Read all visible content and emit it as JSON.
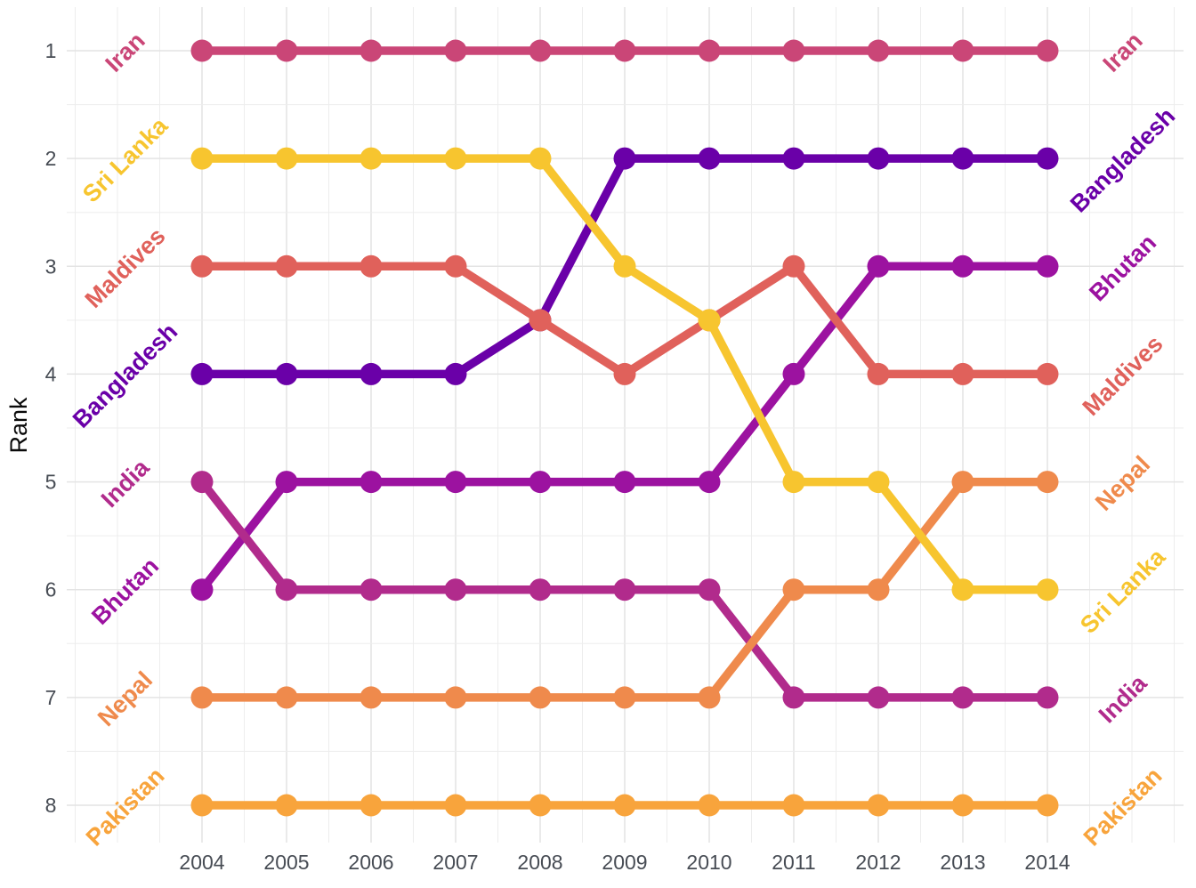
{
  "chart_data": {
    "type": "line",
    "subtype": "bump-rank-chart",
    "title": "",
    "xlabel": "",
    "ylabel": "Rank",
    "grid": true,
    "legend_position": "line-end-labels",
    "x": [
      2004,
      2005,
      2006,
      2007,
      2008,
      2009,
      2010,
      2011,
      2012,
      2013,
      2014
    ],
    "x_tick_labels": [
      "2004",
      "2005",
      "2006",
      "2007",
      "2008",
      "2009",
      "2010",
      "2011",
      "2012",
      "2013",
      "2014"
    ],
    "y_ticks": [
      1,
      2,
      3,
      4,
      5,
      6,
      7,
      8
    ],
    "y_tick_labels": [
      "1",
      "2",
      "3",
      "4",
      "5",
      "6",
      "7",
      "8"
    ],
    "y_axis_reversed": true,
    "rank_range": [
      1,
      8
    ],
    "series": [
      {
        "name": "Bangladesh",
        "color": "#6A00A8",
        "ranks": [
          4,
          4,
          4,
          4,
          3.5,
          2,
          2,
          2,
          2,
          2,
          2
        ]
      },
      {
        "name": "Bhutan",
        "color": "#9C12A0",
        "ranks": [
          6,
          5,
          5,
          5,
          5,
          5,
          5,
          4,
          3,
          3,
          3
        ]
      },
      {
        "name": "India",
        "color": "#B12B8C",
        "ranks": [
          5,
          6,
          6,
          6,
          6,
          6,
          6,
          7,
          7,
          7,
          7
        ]
      },
      {
        "name": "Iran",
        "color": "#CA4677",
        "ranks": [
          1,
          1,
          1,
          1,
          1,
          1,
          1,
          1,
          1,
          1,
          1
        ]
      },
      {
        "name": "Maldives",
        "color": "#E0615B",
        "ranks": [
          3,
          3,
          3,
          3,
          3.5,
          4,
          3.5,
          3,
          4,
          4,
          4
        ]
      },
      {
        "name": "Nepal",
        "color": "#EF8A4C",
        "ranks": [
          7,
          7,
          7,
          7,
          7,
          7,
          7,
          6,
          6,
          5,
          5
        ]
      },
      {
        "name": "Pakistan",
        "color": "#F8A43C",
        "ranks": [
          8,
          8,
          8,
          8,
          8,
          8,
          8,
          8,
          8,
          8,
          8
        ]
      },
      {
        "name": "Sri Lanka",
        "color": "#F7C52F",
        "ranks": [
          2,
          2,
          2,
          2,
          2,
          3,
          3.5,
          5,
          5,
          6,
          6
        ]
      }
    ],
    "left_labels_top_to_bottom": [
      "Iran",
      "Sri Lanka",
      "Maldives",
      "Bangladesh",
      "India",
      "Bhutan",
      "Nepal",
      "Pakistan"
    ],
    "right_labels_top_to_bottom": [
      "Iran",
      "Bangladesh",
      "Bhutan",
      "Maldives",
      "Nepal",
      "Sri Lanka",
      "India",
      "Pakistan"
    ]
  }
}
